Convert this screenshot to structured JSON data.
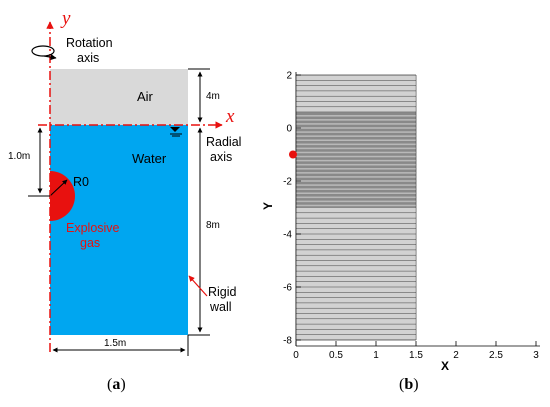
{
  "panel_a": {
    "axis_y_label": "y",
    "axis_x_label": "x",
    "rotation_label_1": "Rotation",
    "rotation_label_2": "axis",
    "air_label": "Air",
    "water_label": "Water",
    "radial_label_1": "Radial",
    "radial_label_2": "axis",
    "r0_label": "R0",
    "explosive_label_1": "Explosive",
    "explosive_label_2": "gas",
    "rigid_label_1": "Rigid",
    "rigid_label_2": "wall",
    "dim_air": "4m",
    "dim_water": "8m",
    "dim_depth": "1.0m",
    "dim_width": "1.5m",
    "caption_open": "(",
    "caption_letter": "a",
    "caption_close": ")",
    "colors": {
      "air": "#d9d9d9",
      "water": "#00a6f0",
      "gas": "#e8110f",
      "axis": "#e8110f"
    }
  },
  "panel_b": {
    "x_axis_title": "X",
    "y_axis_title": "Y",
    "x_ticks": [
      "0",
      "0.5",
      "1",
      "1.5",
      "2",
      "2.5",
      "3"
    ],
    "y_ticks": [
      "2",
      "0",
      "-2",
      "-4",
      "-6",
      "-8"
    ],
    "caption_open": "(",
    "caption_letter": "b",
    "caption_close": ")"
  },
  "chart_data": {
    "type": "mesh",
    "xlabel": "X",
    "ylabel": "Y",
    "xlim": [
      0,
      3
    ],
    "ylim": [
      -8.2,
      2.2
    ],
    "mesh_x_range": [
      0,
      1.5
    ],
    "mesh_y_range": [
      -8,
      2
    ],
    "refined_band_y": [
      -3,
      0.6
    ],
    "marker": {
      "x": 0,
      "y": -1,
      "color": "#e8110f"
    }
  }
}
